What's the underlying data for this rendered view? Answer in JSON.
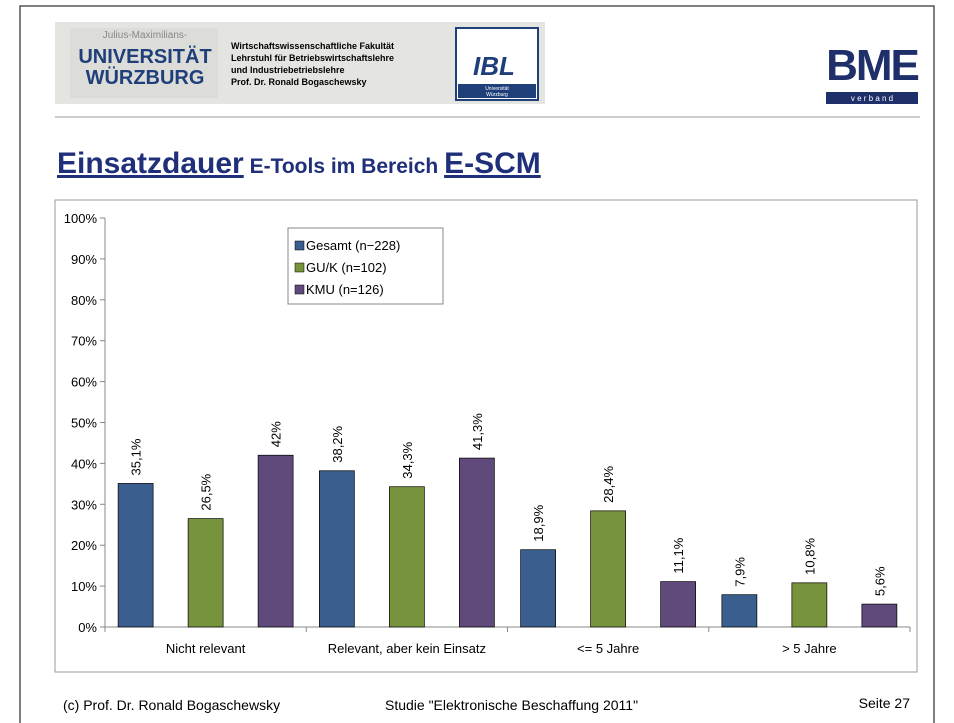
{
  "header": {
    "university_small": "Julius-Maximilians-",
    "university_line1": "UNIVERSITÄT",
    "university_line2": "WÜRZBURG",
    "faculty_lines": [
      "Wirtschaftswissenschaftliche Fakultät",
      "Lehrstuhl für Betriebswirtschaftslehre",
      "und Industriebetriebslehre",
      "Prof. Dr. Ronald Bogaschewsky"
    ],
    "ibl_logo": "IBL",
    "ibl_sub": [
      "Universität",
      "Würzburg"
    ],
    "bme_logo": "BME",
    "bme_sub": "v e r b a n d"
  },
  "title_parts": [
    "Einsatzdauer",
    " E-Tools im Bereich ",
    "E-SCM"
  ],
  "chart_data": {
    "type": "bar",
    "categories": [
      "Nicht relevant",
      "Relevant, aber kein Einsatz",
      "<= 5 Jahre",
      "> 5 Jahre"
    ],
    "series": [
      {
        "name": "Gesamt (n−228)",
        "color": "#3a5f8f",
        "values": [
          35.1,
          38.2,
          18.9,
          7.9
        ],
        "value_labels": [
          "35,1%",
          "38,2%",
          "18,9%",
          "7,9%"
        ]
      },
      {
        "name": "GU/K (n=102)",
        "color": "#77933c",
        "values": [
          26.5,
          34.3,
          28.4,
          10.8
        ],
        "value_labels": [
          "26,5%",
          "34,3%",
          "28,4%",
          "10,8%"
        ]
      },
      {
        "name": "KMU (n=126)",
        "color": "#604a7b",
        "values": [
          42,
          41.3,
          11.1,
          5.6
        ],
        "value_labels": [
          "42%",
          "41,3%",
          "11,1%",
          "5,6%"
        ]
      }
    ],
    "ylim": [
      0,
      100
    ],
    "yticks": [
      {
        "value": 0,
        "label": "0%"
      },
      {
        "value": 10,
        "label": "10%"
      },
      {
        "value": 20,
        "label": "20%"
      },
      {
        "value": 30,
        "label": "30%"
      },
      {
        "value": 40,
        "label": "40%"
      },
      {
        "value": 50,
        "label": "50%"
      },
      {
        "value": 60,
        "label": "60%"
      },
      {
        "value": 70,
        "label": "70%"
      },
      {
        "value": 80,
        "label": "80%"
      },
      {
        "value": 90,
        "label": "90%"
      },
      {
        "value": 100,
        "label": "100%"
      }
    ],
    "legend": "top-left"
  },
  "footer": {
    "left": "(c) Prof. Dr. Ronald Bogaschewsky",
    "center": "Studie \"Elektronische Beschaffung 2011\"",
    "right": "Seite 27"
  }
}
